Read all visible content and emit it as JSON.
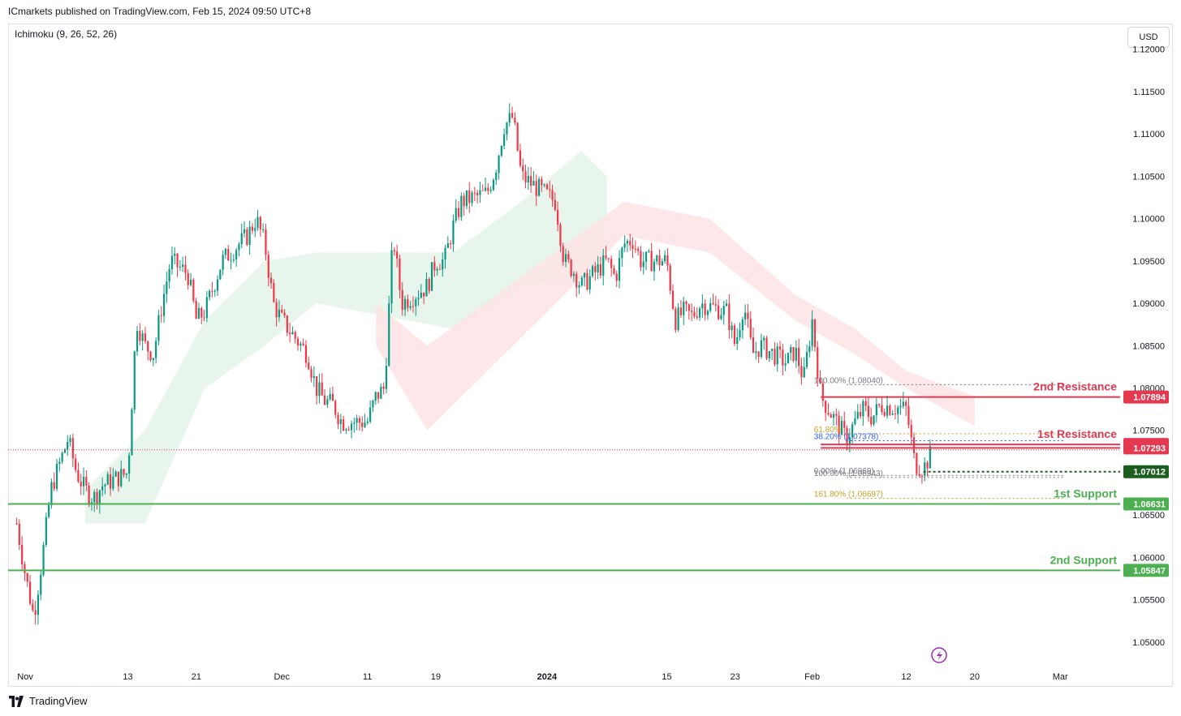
{
  "header": {
    "publisher": "ICmarkets published on TradingView.com, Feb 15, 2024 09:50 UTC+8"
  },
  "indicator": {
    "label": "Ichimoku (9, 26, 52, 26)"
  },
  "currency": {
    "label": "USD"
  },
  "footer": {
    "brand": "TradingView"
  },
  "colors": {
    "up": "#089981",
    "down": "#f23645",
    "resistance": "#e53950",
    "support": "#4caf50",
    "fib_gold": "#c9a227",
    "fib_blue": "#2962ff",
    "fib_gray": "#787b86",
    "cloud_green": "#e6f4ea",
    "cloud_red": "#fde4e6"
  },
  "chart_data": {
    "type": "candlestick",
    "title": "",
    "ylim": [
      1.0475,
      1.1215
    ],
    "y_ticks": [
      "1.05000",
      "1.05500",
      "1.06000",
      "1.06500",
      "1.07000",
      "1.07500",
      "1.08000",
      "1.08500",
      "1.09000",
      "1.09500",
      "1.10000",
      "1.10500",
      "1.11000",
      "1.11500",
      "1.12000"
    ],
    "x_ticks": [
      {
        "label": "Nov",
        "date": "2023-11-01",
        "bold": false
      },
      {
        "label": "13",
        "date": "2023-11-13",
        "bold": false
      },
      {
        "label": "21",
        "date": "2023-11-21",
        "bold": false
      },
      {
        "label": "Dec",
        "date": "2023-12-01",
        "bold": false
      },
      {
        "label": "11",
        "date": "2023-12-11",
        "bold": false
      },
      {
        "label": "19",
        "date": "2023-12-19",
        "bold": false
      },
      {
        "label": "2024",
        "date": "2024-01-01",
        "bold": true
      },
      {
        "label": "15",
        "date": "2024-01-15",
        "bold": false
      },
      {
        "label": "23",
        "date": "2024-01-23",
        "bold": false
      },
      {
        "label": "Feb",
        "date": "2024-02-01",
        "bold": false
      },
      {
        "label": "12",
        "date": "2024-02-12",
        "bold": false
      },
      {
        "label": "20",
        "date": "2024-02-20",
        "bold": false
      },
      {
        "label": "Mar",
        "date": "2024-03-01",
        "bold": false
      }
    ],
    "price_path": [
      [
        "2023-10-31",
        1.064
      ],
      [
        "2023-11-01",
        1.058
      ],
      [
        "2023-11-02",
        1.053
      ],
      [
        "2023-11-03",
        1.06
      ],
      [
        "2023-11-04",
        1.068
      ],
      [
        "2023-11-06",
        1.074
      ],
      [
        "2023-11-07",
        1.07
      ],
      [
        "2023-11-08",
        1.068
      ],
      [
        "2023-11-09",
        1.067
      ],
      [
        "2023-11-10",
        1.0685
      ],
      [
        "2023-11-13",
        1.07
      ],
      [
        "2023-11-14",
        1.088
      ],
      [
        "2023-11-15",
        1.085
      ],
      [
        "2023-11-16",
        1.084
      ],
      [
        "2023-11-17",
        1.09
      ],
      [
        "2023-11-18",
        1.095
      ],
      [
        "2023-11-20",
        1.0935
      ],
      [
        "2023-11-21",
        1.088
      ],
      [
        "2023-11-22",
        1.089
      ],
      [
        "2023-11-23",
        1.092
      ],
      [
        "2023-11-24",
        1.095
      ],
      [
        "2023-11-27",
        1.098
      ],
      [
        "2023-11-28",
        1.1
      ],
      [
        "2023-11-29",
        1.097
      ],
      [
        "2023-11-30",
        1.09
      ],
      [
        "2023-12-01",
        1.088
      ],
      [
        "2023-12-04",
        1.084
      ],
      [
        "2023-12-05",
        1.08
      ],
      [
        "2023-12-06",
        1.0785
      ],
      [
        "2023-12-07",
        1.078
      ],
      [
        "2023-12-08",
        1.076
      ],
      [
        "2023-12-11",
        1.076
      ],
      [
        "2023-12-12",
        1.079
      ],
      [
        "2023-12-13",
        1.08
      ],
      [
        "2023-12-14",
        1.098
      ],
      [
        "2023-12-15",
        1.09
      ],
      [
        "2023-12-18",
        1.092
      ],
      [
        "2023-12-19",
        1.095
      ],
      [
        "2023-12-20",
        1.095
      ],
      [
        "2023-12-21",
        1.099
      ],
      [
        "2023-12-22",
        1.102
      ],
      [
        "2023-12-25",
        1.103
      ],
      [
        "2023-12-26",
        1.106
      ],
      [
        "2023-12-27",
        1.111
      ],
      [
        "2023-12-28",
        1.112
      ],
      [
        "2023-12-29",
        1.105
      ],
      [
        "2024-01-02",
        1.102
      ],
      [
        "2024-01-03",
        1.095
      ],
      [
        "2024-01-04",
        1.094
      ],
      [
        "2024-01-05",
        1.092
      ],
      [
        "2024-01-08",
        1.095
      ],
      [
        "2024-01-09",
        1.093
      ],
      [
        "2024-01-10",
        1.097
      ],
      [
        "2024-01-11",
        1.0975
      ],
      [
        "2024-01-12",
        1.095
      ],
      [
        "2024-01-15",
        1.095
      ],
      [
        "2024-01-16",
        1.088
      ],
      [
        "2024-01-17",
        1.089
      ],
      [
        "2024-01-18",
        1.0885
      ],
      [
        "2024-01-19",
        1.09
      ],
      [
        "2024-01-22",
        1.089
      ],
      [
        "2024-01-23",
        1.085
      ],
      [
        "2024-01-24",
        1.09
      ],
      [
        "2024-01-25",
        1.084
      ],
      [
        "2024-01-26",
        1.085
      ],
      [
        "2024-01-29",
        1.083
      ],
      [
        "2024-01-30",
        1.0845
      ],
      [
        "2024-01-31",
        1.081
      ],
      [
        "2024-02-01",
        1.088
      ],
      [
        "2024-02-02",
        1.079
      ],
      [
        "2024-02-05",
        1.074
      ],
      [
        "2024-02-06",
        1.076
      ],
      [
        "2024-02-07",
        1.0775
      ],
      [
        "2024-02-08",
        1.0765
      ],
      [
        "2024-02-09",
        1.078
      ],
      [
        "2024-02-12",
        1.0775
      ],
      [
        "2024-02-13",
        1.071
      ],
      [
        "2024-02-14",
        1.0705
      ],
      [
        "2024-02-15",
        1.0725
      ]
    ],
    "cloud": {
      "green": [
        [
          "2023-11-08",
          1.064,
          1.068
        ],
        [
          "2023-11-15",
          1.064,
          1.075
        ],
        [
          "2023-11-22",
          1.08,
          1.088
        ],
        [
          "2023-11-29",
          1.085,
          1.095
        ],
        [
          "2023-12-05",
          1.09,
          1.096
        ],
        [
          "2023-12-21",
          1.087,
          1.096
        ],
        [
          "2023-12-29",
          1.092,
          1.102
        ],
        [
          "2024-01-05",
          1.093,
          1.108
        ],
        [
          "2024-01-08",
          1.095,
          1.105
        ]
      ],
      "red": [
        [
          "2023-12-12",
          1.09,
          1.085
        ],
        [
          "2023-12-18",
          1.085,
          1.075
        ],
        [
          "2024-01-10",
          1.098,
          1.102
        ],
        [
          "2024-01-20",
          1.096,
          1.1
        ],
        [
          "2024-01-30",
          1.088,
          1.091
        ],
        [
          "2024-02-06",
          1.084,
          1.087
        ],
        [
          "2024-02-12",
          1.08,
          1.082
        ],
        [
          "2024-02-20",
          1.0755,
          1.079
        ]
      ]
    },
    "levels": [
      {
        "label": "2nd Resistance",
        "value": "1.07894",
        "price": 1.07894,
        "type": "resistance"
      },
      {
        "label": "1st Resistance",
        "value": "1.07334",
        "price": 1.07334,
        "type": "resistance"
      },
      {
        "label": "",
        "value": "1.07293",
        "price": 1.07293,
        "type": "resistance"
      },
      {
        "label": "",
        "value": "1.07012",
        "price": 1.07012,
        "type": "current"
      },
      {
        "label": "1st Support",
        "value": "1.06631",
        "price": 1.06631,
        "type": "support"
      },
      {
        "label": "2nd Support",
        "value": "1.05847",
        "price": 1.05847,
        "type": "support"
      }
    ],
    "fib": [
      {
        "label": "100.00% (1.08040)",
        "price": 1.0804,
        "color": "#787b86"
      },
      {
        "label": "61.80%",
        "price": 1.0746,
        "color": "#c9a227"
      },
      {
        "label": "38.20% (1.07378)",
        "price": 1.07378,
        "color": "#2962ff"
      },
      {
        "label": "0.00% (1.06969)",
        "price": 1.06969,
        "color": "#787b86"
      },
      {
        "label": "100.00% (1.06943)",
        "price": 1.06943,
        "color": "#787b86"
      },
      {
        "label": "161.80% (1.06697)",
        "price": 1.06697,
        "color": "#c9a227"
      }
    ]
  }
}
